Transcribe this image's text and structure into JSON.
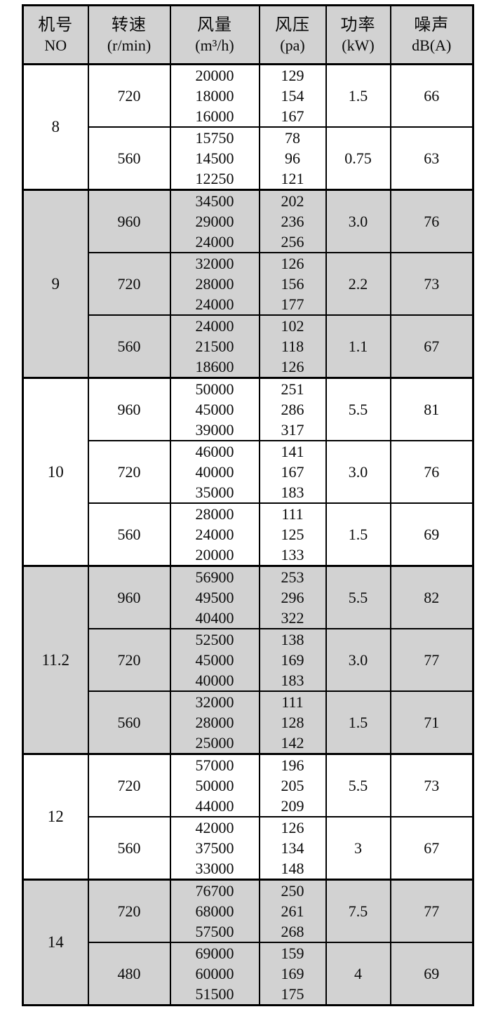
{
  "colors": {
    "shaded_row_bg": "#d2d2d2",
    "plain_row_bg": "#ffffff",
    "header_bg": "#d2d2d2",
    "border": "#000000"
  },
  "table": {
    "columns": [
      {
        "id": "no",
        "label": "机号",
        "unit": "NO"
      },
      {
        "id": "speed",
        "label": "转速",
        "unit": "(r/min)"
      },
      {
        "id": "airflow",
        "label": "风量",
        "unit": "(m³/h)"
      },
      {
        "id": "pressure",
        "label": "风压",
        "unit": "(pa)"
      },
      {
        "id": "power",
        "label": "功率",
        "unit": "(kW)"
      },
      {
        "id": "noise",
        "label": "噪声",
        "unit": "dB(A)"
      }
    ],
    "groups": [
      {
        "no": "8",
        "shaded": false,
        "rows": [
          {
            "speed": "720",
            "airflow": [
              "20000",
              "18000",
              "16000"
            ],
            "pressure": [
              "129",
              "154",
              "167"
            ],
            "power": "1.5",
            "noise": "66"
          },
          {
            "speed": "560",
            "airflow": [
              "15750",
              "14500",
              "12250"
            ],
            "pressure": [
              "78",
              "96",
              "121"
            ],
            "power": "0.75",
            "noise": "63"
          }
        ]
      },
      {
        "no": "9",
        "shaded": true,
        "rows": [
          {
            "speed": "960",
            "airflow": [
              "34500",
              "29000",
              "24000"
            ],
            "pressure": [
              "202",
              "236",
              "256"
            ],
            "power": "3.0",
            "noise": "76"
          },
          {
            "speed": "720",
            "airflow": [
              "32000",
              "28000",
              "24000"
            ],
            "pressure": [
              "126",
              "156",
              "177"
            ],
            "power": "2.2",
            "noise": "73"
          },
          {
            "speed": "560",
            "airflow": [
              "24000",
              "21500",
              "18600"
            ],
            "pressure": [
              "102",
              "118",
              "126"
            ],
            "power": "1.1",
            "noise": "67"
          }
        ]
      },
      {
        "no": "10",
        "shaded": false,
        "rows": [
          {
            "speed": "960",
            "airflow": [
              "50000",
              "45000",
              "39000"
            ],
            "pressure": [
              "251",
              "286",
              "317"
            ],
            "power": "5.5",
            "noise": "81"
          },
          {
            "speed": "720",
            "airflow": [
              "46000",
              "40000",
              "35000"
            ],
            "pressure": [
              "141",
              "167",
              "183"
            ],
            "power": "3.0",
            "noise": "76"
          },
          {
            "speed": "560",
            "airflow": [
              "28000",
              "24000",
              "20000"
            ],
            "pressure": [
              "111",
              "125",
              "133"
            ],
            "power": "1.5",
            "noise": "69"
          }
        ]
      },
      {
        "no": "11.2",
        "shaded": true,
        "rows": [
          {
            "speed": "960",
            "airflow": [
              "56900",
              "49500",
              "40400"
            ],
            "pressure": [
              "253",
              "296",
              "322"
            ],
            "power": "5.5",
            "noise": "82"
          },
          {
            "speed": "720",
            "airflow": [
              "52500",
              "45000",
              "40000"
            ],
            "pressure": [
              "138",
              "169",
              "183"
            ],
            "power": "3.0",
            "noise": "77"
          },
          {
            "speed": "560",
            "airflow": [
              "32000",
              "28000",
              "25000"
            ],
            "pressure": [
              "111",
              "128",
              "142"
            ],
            "power": "1.5",
            "noise": "71"
          }
        ]
      },
      {
        "no": "12",
        "shaded": false,
        "rows": [
          {
            "speed": "720",
            "airflow": [
              "57000",
              "50000",
              "44000"
            ],
            "pressure": [
              "196",
              "205",
              "209"
            ],
            "power": "5.5",
            "noise": "73"
          },
          {
            "speed": "560",
            "airflow": [
              "42000",
              "37500",
              "33000"
            ],
            "pressure": [
              "126",
              "134",
              "148"
            ],
            "power": "3",
            "noise": "67"
          }
        ]
      },
      {
        "no": "14",
        "shaded": true,
        "rows": [
          {
            "speed": "720",
            "airflow": [
              "76700",
              "68000",
              "57500"
            ],
            "pressure": [
              "250",
              "261",
              "268"
            ],
            "power": "7.5",
            "noise": "77"
          },
          {
            "speed": "480",
            "airflow": [
              "69000",
              "60000",
              "51500"
            ],
            "pressure": [
              "159",
              "169",
              "175"
            ],
            "power": "4",
            "noise": "69"
          }
        ]
      }
    ]
  }
}
